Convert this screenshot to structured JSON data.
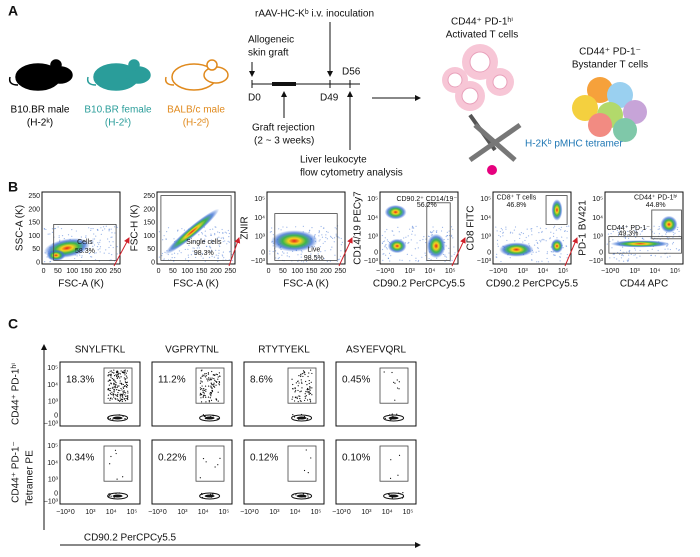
{
  "panel_a": {
    "letter": "A",
    "mice": [
      {
        "name": "B10.BR male",
        "haplotype": "(H-2ᵏ)",
        "color": "#000000",
        "text_color": "#000000"
      },
      {
        "name": "B10.BR female",
        "haplotype": "(H-2ᵏ)",
        "color": "#2a9d9a",
        "text_color": "#2a9d9a"
      },
      {
        "name": "BALB/c male",
        "haplotype": "(H-2ᵈ)",
        "color": "#e08a1e",
        "text_color": "#e08a1e"
      }
    ],
    "timeline": {
      "inoculation": "rAAV-HC-Kᵇ i.v. inoculation",
      "graft_1": "Allogeneic",
      "graft_2": "skin graft",
      "d0": "D0",
      "d49": "D49",
      "d56": "D56",
      "rejection_1": "Graft rejection",
      "rejection_2": "(2 ~ 3 weeks)",
      "analysis_1": "Liver leukocyte",
      "analysis_2": "flow cytometry analysis"
    },
    "cells": {
      "activated_1": "CD44⁺ PD-1ʰⁱ",
      "activated_2": "Activated T cells",
      "bystander_1": "CD44⁺ PD-1⁻",
      "bystander_2": "Bystander T cells",
      "tetramer": "H-2Kᵇ pMHC tetramer"
    }
  },
  "panel_b": {
    "letter": "B",
    "plots": [
      {
        "x_label": "FSC-A (K)",
        "y_label": "SSC-A (K)",
        "xticks": [
          "0",
          "50",
          "100",
          "150",
          "200",
          "250"
        ],
        "yticks": [
          "0",
          "50",
          "100",
          "150",
          "200",
          "250"
        ],
        "gates": [
          {
            "name": "Cells",
            "percent": "58.3%"
          }
        ]
      },
      {
        "x_label": "FSC-A (K)",
        "y_label": "FSC-H (K)",
        "xticks": [
          "0",
          "50",
          "100",
          "150",
          "200",
          "250"
        ],
        "yticks": [
          "0",
          "50",
          "100",
          "150",
          "200",
          "250"
        ],
        "gates": [
          {
            "name": "Single cells",
            "percent": "98.3%"
          }
        ]
      },
      {
        "x_label": "FSC-A (K)",
        "y_label": "ZNIR",
        "xticks": [
          "0",
          "50",
          "100",
          "150",
          "200",
          "250"
        ],
        "yticks": [
          "−10³",
          "0",
          "10³",
          "10⁴",
          "10⁵"
        ],
        "gates": [
          {
            "name": "Live",
            "percent": "98.5%"
          }
        ]
      },
      {
        "x_label": "CD90.2 PerCPCy5.5",
        "y_label": "CD14/19 PECy7",
        "xticks": [
          "−10³",
          "0",
          "10³",
          "10⁴",
          "10⁵"
        ],
        "yticks": [
          "−10³",
          "0",
          "10³",
          "10⁴",
          "10⁵"
        ],
        "gates": [
          {
            "name": "CD90.2⁺ CD14/19⁻",
            "percent": "56.2%"
          }
        ]
      },
      {
        "x_label": "CD90.2 PerCPCy5.5",
        "y_label": "CD8 FITC",
        "xticks": [
          "−10³",
          "0",
          "10³",
          "10⁴",
          "10⁵"
        ],
        "yticks": [
          "−10³",
          "0",
          "10³",
          "10⁴",
          "10⁵"
        ],
        "gates": [
          {
            "name": "CD8⁺ T cells",
            "percent": "46.8%"
          }
        ]
      },
      {
        "x_label": "CD44 APC",
        "y_label": "PD-1 BV421",
        "xticks": [
          "−10³",
          "0",
          "10³",
          "10⁴",
          "10⁵"
        ],
        "yticks": [
          "−10³",
          "0",
          "10³",
          "10⁴",
          "10⁵"
        ],
        "gates": [
          {
            "name": "CD44⁺ PD-1ʰⁱ",
            "percent": "44.8%"
          },
          {
            "name": "CD44⁺ PD-1⁻",
            "percent": "49.3%"
          }
        ]
      }
    ]
  },
  "panel_c": {
    "letter": "C",
    "columns": [
      "SNYLFTKL",
      "VGPRYTNL",
      "RTYTYEKL",
      "ASYEFVQRL"
    ],
    "rows": [
      {
        "label": "CD44⁺ PD-1ʰⁱ",
        "percents": [
          "18.3%",
          "11.2%",
          "8.6%",
          "0.45%"
        ]
      },
      {
        "label": "CD44⁺ PD-1⁻",
        "percents": [
          "0.34%",
          "0.22%",
          "0.12%",
          "0.10%"
        ]
      }
    ],
    "y_label": "Tetramer PE",
    "x_label": "CD90.2 PerCPCy5.5",
    "xticks": [
      "−10³",
      "0",
      "10³",
      "10⁴",
      "10⁵"
    ],
    "yticks": [
      "−10³",
      "0",
      "10³",
      "10⁴",
      "10⁵"
    ]
  }
}
